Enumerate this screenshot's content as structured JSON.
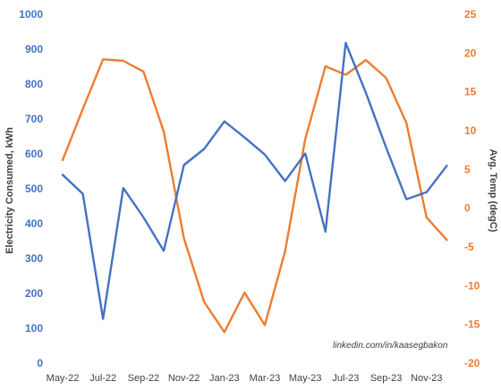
{
  "chart_data": {
    "type": "line",
    "x": [
      "May-22",
      "Jun-22",
      "Jul-22",
      "Aug-22",
      "Sep-22",
      "Oct-22",
      "Nov-22",
      "Dec-22",
      "Jan-23",
      "Feb-23",
      "Mar-23",
      "Apr-23",
      "May-23",
      "Jun-23",
      "Jul-23",
      "Aug-23",
      "Sep-23",
      "Oct-23",
      "Nov-23",
      "Dec-23"
    ],
    "x_tick_labels": [
      "May-22",
      "Jul-22",
      "Sep-22",
      "Nov-22",
      "Jan-23",
      "Mar-23",
      "May-23",
      "Jul-23",
      "Sep-23",
      "Nov-23"
    ],
    "series": [
      {
        "axis": "left",
        "color": "#4472C4",
        "values": [
          540,
          485,
          127,
          502,
          418,
          322,
          568,
          614,
          693,
          647,
          598,
          522,
          601,
          377,
          918,
          775,
          618,
          470,
          490,
          566
        ]
      },
      {
        "axis": "right",
        "color": "#ED7D31",
        "values": [
          6.2,
          12.8,
          19.2,
          19.0,
          17.6,
          9.9,
          -3.9,
          -12.1,
          -16.0,
          -10.9,
          -15.1,
          -5.6,
          8.9,
          18.3,
          17.2,
          19.1,
          16.8,
          11.0,
          -1.2,
          -4.1
        ]
      }
    ],
    "ylabel_left": "Electricity Consumed, kWh",
    "ylabel_right": "Avg. Temp (degC)",
    "ylim_left": [
      0,
      1000
    ],
    "ylim_right": [
      -20,
      25
    ],
    "yticks_left": [
      0,
      100,
      200,
      300,
      400,
      500,
      600,
      700,
      800,
      900,
      1000
    ],
    "yticks_right": [
      -20,
      -15,
      -10,
      -5,
      0,
      5,
      10,
      15,
      20,
      25
    ],
    "grid": false,
    "legend": "none",
    "annotation": "linkedin.com/in/kaasegbakon"
  }
}
